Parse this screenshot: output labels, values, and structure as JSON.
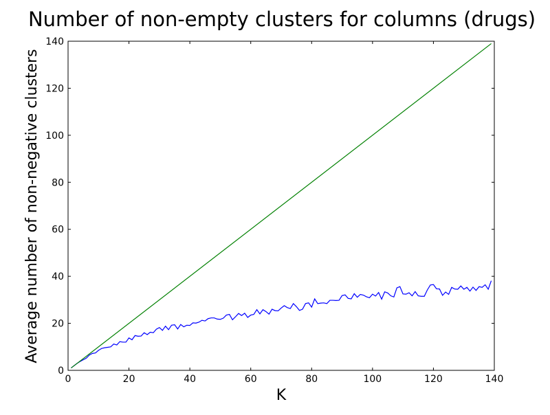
{
  "chart_data": {
    "type": "line",
    "title": "Number of non-empty clusters for columns (drugs)",
    "xlabel": "K",
    "ylabel": "Average number of non-negative clusters",
    "xlim": [
      0,
      140
    ],
    "ylim": [
      0,
      140
    ],
    "xticks": [
      0,
      20,
      40,
      60,
      80,
      100,
      120,
      140
    ],
    "yticks": [
      0,
      20,
      40,
      60,
      80,
      100,
      120,
      140
    ],
    "grid": false,
    "legend": "none",
    "series": [
      {
        "color": "#0000ff",
        "x": [
          1,
          2,
          3,
          4,
          5,
          6,
          7,
          8,
          9,
          10,
          11,
          12,
          13,
          14,
          15,
          16,
          17,
          18,
          19,
          20,
          21,
          22,
          23,
          24,
          25,
          26,
          27,
          28,
          29,
          30,
          31,
          32,
          33,
          34,
          35,
          36,
          37,
          38,
          39,
          40,
          41,
          42,
          43,
          44,
          45,
          46,
          47,
          48,
          49,
          50,
          51,
          52,
          53,
          54,
          55,
          56,
          57,
          58,
          59,
          60,
          61,
          62,
          63,
          64,
          65,
          66,
          67,
          68,
          69,
          70,
          71,
          72,
          73,
          74,
          75,
          76,
          77,
          78,
          79,
          80,
          81,
          82,
          83,
          84,
          85,
          86,
          87,
          88,
          89,
          90,
          91,
          92,
          93,
          94,
          95,
          96,
          97,
          98,
          99,
          100,
          101,
          102,
          103,
          104,
          105,
          106,
          107,
          108,
          109,
          110,
          111,
          112,
          113,
          114,
          115,
          116,
          117,
          118,
          119,
          120,
          121,
          122,
          123,
          124,
          125,
          126,
          127,
          128,
          129,
          130,
          131,
          132,
          133,
          134,
          135,
          136,
          137,
          138,
          139
        ],
        "y": [
          1,
          2,
          3,
          3.8,
          4.5,
          5.2,
          6.5,
          7.2,
          7.4,
          8.5,
          9.3,
          9.6,
          9.8,
          10,
          11.2,
          10.8,
          12.2,
          12,
          12,
          13.8,
          13,
          14.8,
          14.5,
          14.6,
          16,
          15.2,
          16.2,
          16,
          17.5,
          18.2,
          17,
          18.8,
          17.3,
          19.2,
          19.4,
          17.6,
          19.5,
          18.5,
          19.2,
          19.1,
          20.2,
          20.1,
          20.5,
          21.3,
          21,
          22,
          22.3,
          22.3,
          21.8,
          21.7,
          22.2,
          23.5,
          23.8,
          21.5,
          22.8,
          24.2,
          23.3,
          24.3,
          22.5,
          23.5,
          23.8,
          25.8,
          24,
          25.8,
          25,
          23.9,
          26,
          25.4,
          25.3,
          26.5,
          27.5,
          26.7,
          26.3,
          28.4,
          27.1,
          25.5,
          26,
          28.4,
          28.7,
          26.9,
          30.4,
          28.4,
          28.6,
          28.7,
          28.4,
          29.8,
          29.8,
          29.7,
          29.8,
          31.8,
          32.1,
          30.6,
          30.4,
          32.6,
          31.1,
          32.3,
          32,
          31.3,
          30.9,
          32.4,
          31.6,
          33.1,
          30.3,
          33.4,
          32.9,
          31.7,
          31.2,
          35.1,
          35.6,
          32.5,
          32.4,
          33,
          31.7,
          33.5,
          31.7,
          31.5,
          31.5,
          34.2,
          36.3,
          36.5,
          34.7,
          34.6,
          31.9,
          33.3,
          32.3,
          35.3,
          34.6,
          34.5,
          35.9,
          34.5,
          35.3,
          33.7,
          35.4,
          34,
          35.6,
          35.3,
          36.4,
          34.5,
          38.1
        ]
      },
      {
        "color": "#008000",
        "x": [
          1,
          139
        ],
        "y": [
          1,
          139
        ]
      }
    ]
  }
}
